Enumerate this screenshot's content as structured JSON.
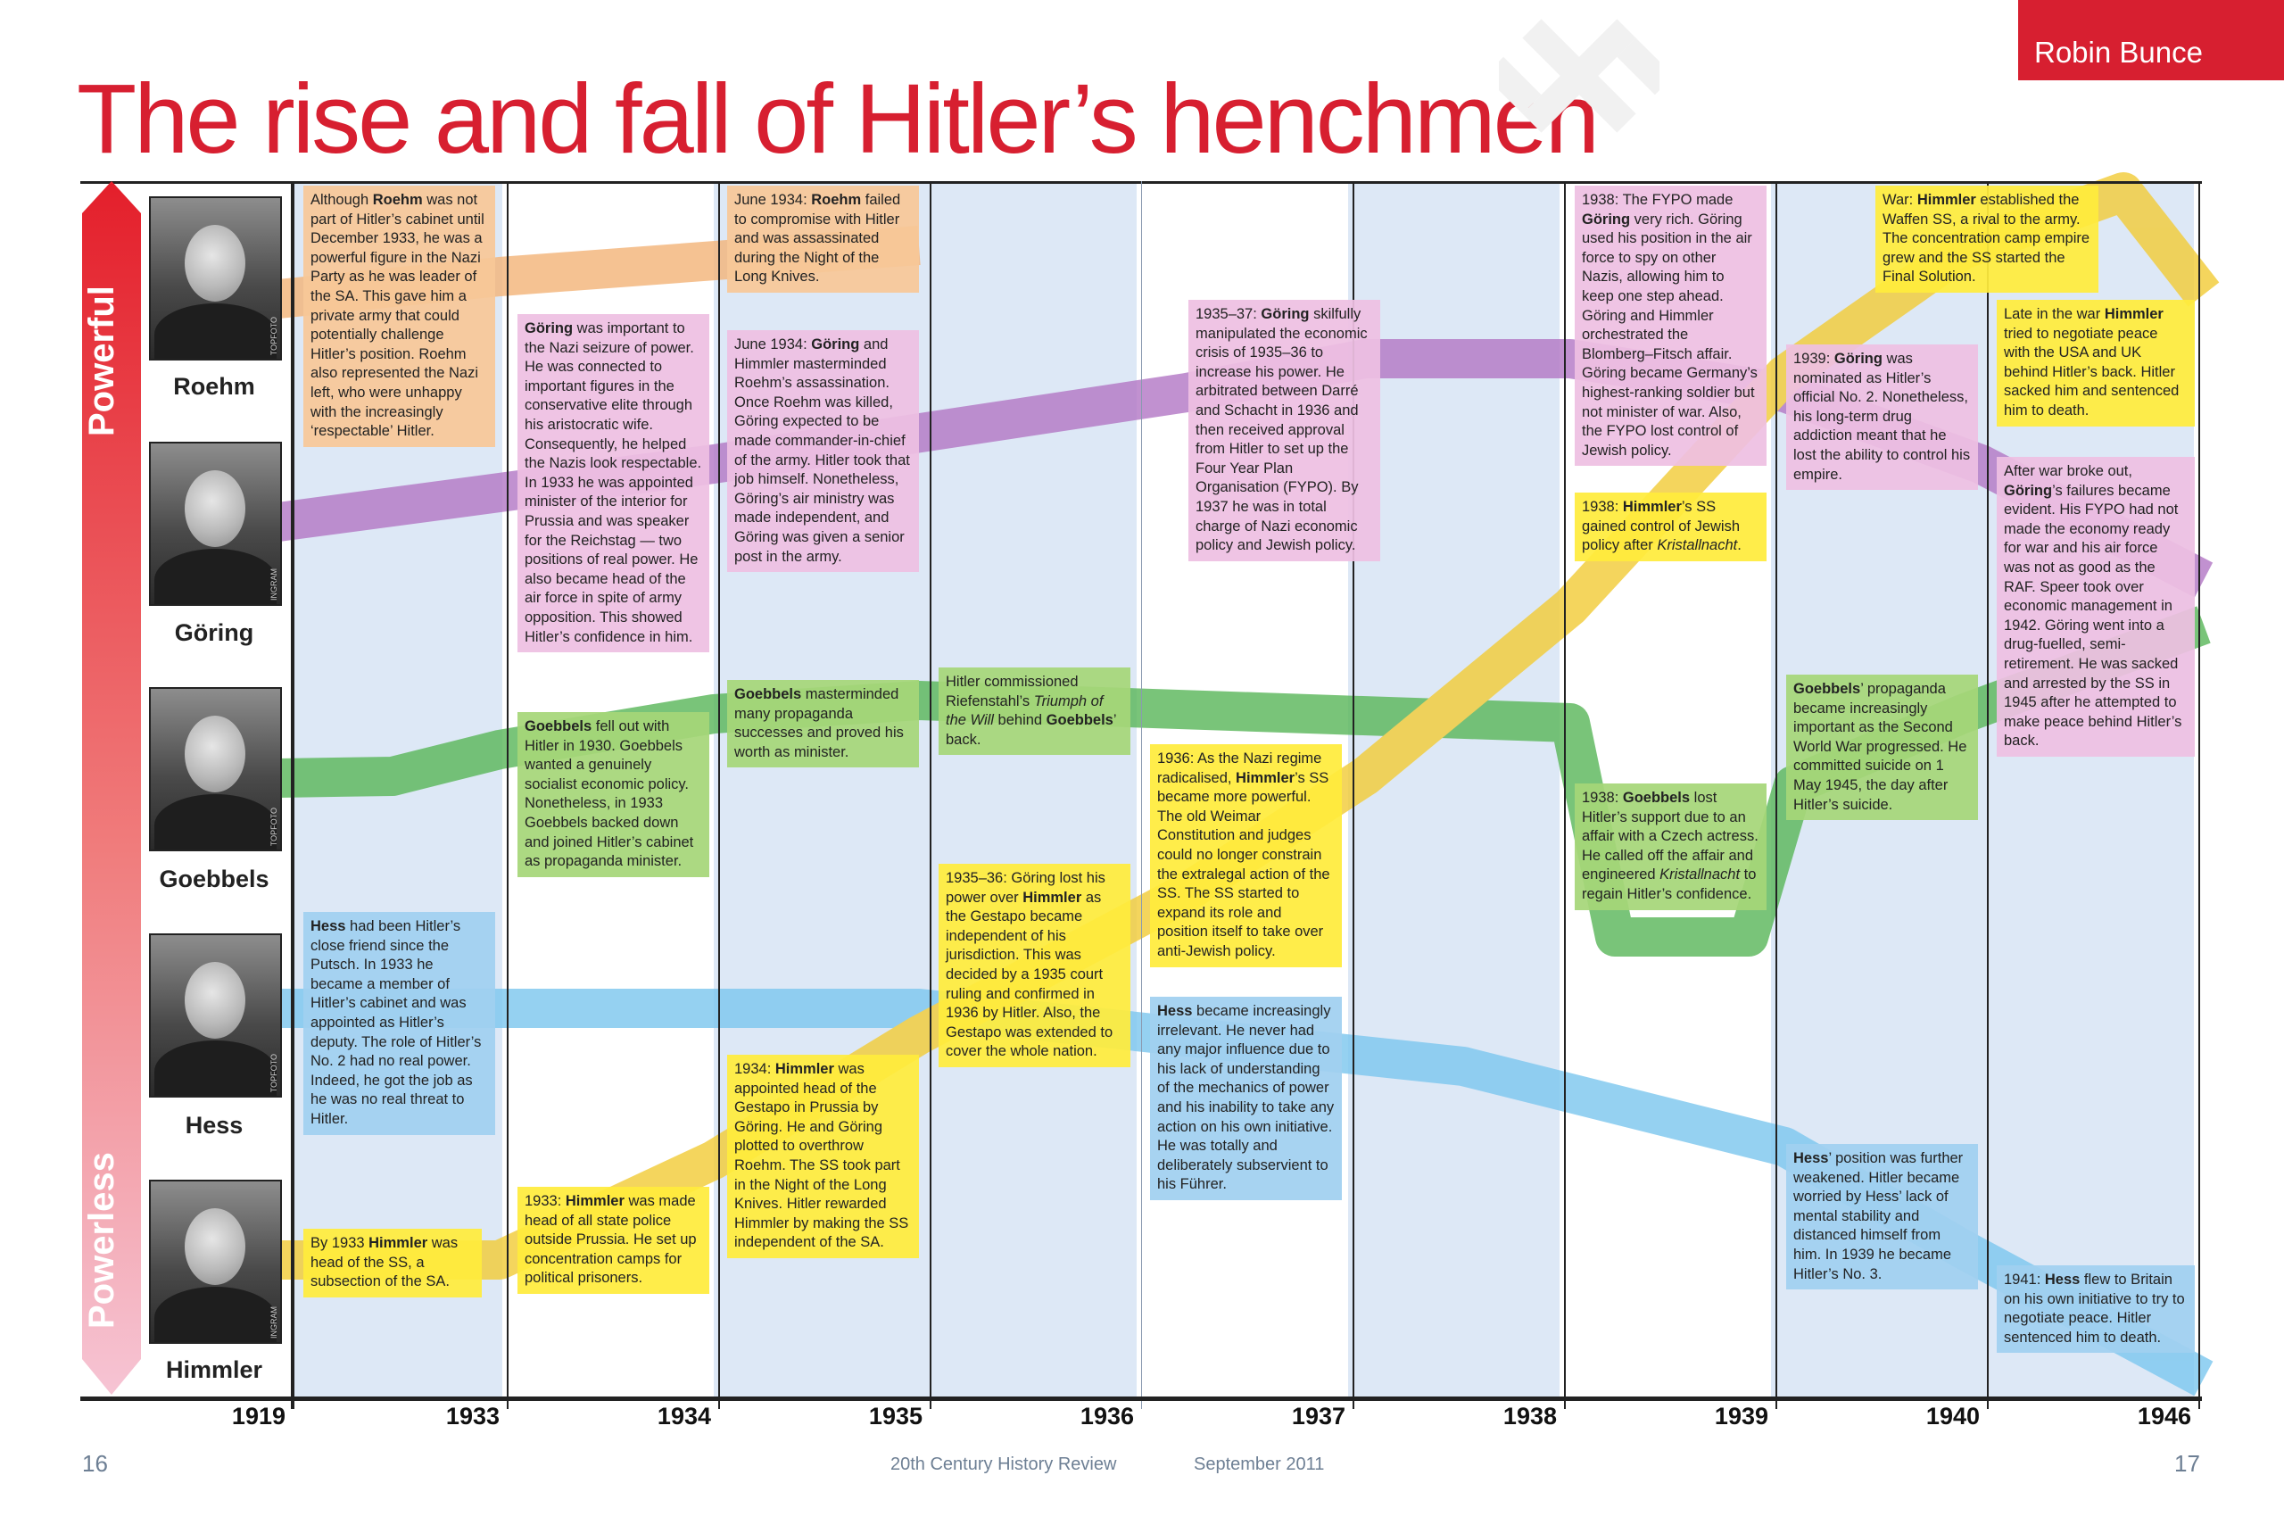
{
  "header": {
    "author": "Robin Bunce",
    "title": "The rise and fall of Hitler’s henchmen"
  },
  "axis": {
    "powerful_label": "Powerful",
    "powerless_label": "Powerless",
    "years": [
      "1919",
      "1933",
      "1934",
      "1935",
      "1936",
      "1937",
      "1938",
      "1939",
      "1940",
      "1946"
    ]
  },
  "people": [
    {
      "name": "Roehm",
      "credit": "TOPFOTO",
      "color": "#f4b57b"
    },
    {
      "name": "Göring",
      "credit": "INGRAM",
      "color": "#b47ac6"
    },
    {
      "name": "Goebbels",
      "credit": "TOPFOTO",
      "color": "#5cb85c"
    },
    {
      "name": "Hess",
      "credit": "TOPFOTO",
      "color": "#7ec8ef"
    },
    {
      "name": "Himmler",
      "credit": "INGRAM",
      "color": "#f2cc3a"
    }
  ],
  "notes": {
    "roehm_1919": "Although <b>Roehm</b> was not part of Hitler’s cabinet until December 1933, he was a powerful figure in the Nazi Party as he was leader of the SA. This gave him a private army that could potentially challenge Hitler’s position. Roehm also represented the Nazi left, who were unhappy with the increasingly ‘respectable’ Hitler.",
    "hess_1919": "<b>Hess</b> had been Hitler’s close friend since the Putsch. In 1933 he became a member of Hitler’s cabinet and was appointed as Hitler’s deputy. The role of Hitler’s No. 2 had no real power. Indeed, he got the job as he was no real threat to Hitler.",
    "himmler_1919": "By 1933 <b>Himmler</b> was head of the SS, a subsection of the SA.",
    "goring_1933": "<b>Göring</b> was important to the Nazi seizure of power. He was connected to important figures in the conservative elite through his aristocratic wife. Consequently, he helped the Nazis look respectable. In 1933 he was appointed minister of the interior for Prussia and was speaker for the Reichstag — two positions of real power. He also became head of the air force in spite of army opposition. This showed Hitler’s confidence in him.",
    "goebbels_1933": "<b>Goebbels</b> fell out with Hitler in 1930. Goebbels wanted a genuinely socialist economic policy. Nonetheless, in 1933 Goebbels backed down and joined Hitler’s cabinet as propaganda minister.",
    "himmler_1933": "1933: <b>Himmler</b> was made head of all state police outside Prussia. He set up concentration camps for political prisoners.",
    "roehm_1934": "June 1934: <b>Roehm</b> failed to compromise with Hitler and was assassinated during the Night of the Long Knives.",
    "goring_1934": "June 1934: <b>Göring</b> and Himmler masterminded Roehm’s assassination. Once Roehm was killed, Göring expected to be made commander-in-chief of the army. Hitler took that job himself. Nonetheless, Göring’s air ministry was made independent, and Göring was given a senior post in the army.",
    "goebbels_1934": "<b>Goebbels</b> masterminded many propaganda successes and proved his worth as minister.",
    "himmler_1934": "1934: <b>Himmler</b> was appointed head of the Gestapo in Prussia by Göring. He and Göring plotted to overthrow Roehm. The SS took part in the Night of the Long Knives. Hitler rewarded Himmler by making the SS independent of the SA.",
    "goebbels_1935": "Hitler commissioned Riefenstahl’s <i>Triumph of the Will</i> behind <b>Goebbels</b>’ back.",
    "goring_1935": "1935–36: Göring lost his power over <b>Himmler</b> as the Gestapo became independent of his jurisdiction. This was decided by a 1935 court ruling and confirmed in 1936 by Hitler. Also, the Gestapo was extended to cover the whole nation.",
    "goring_1936": "1935–37: <b>Göring</b> skilfully manipulated the economic crisis of 1935–36 to increase his power. He arbitrated between Darré and Schacht in 1936 and then received approval from Hitler to set up the Four Year Plan Organisation (FYPO). By 1937 he was in total charge of Nazi economic policy and Jewish policy.",
    "himmler_1936": "1936: As the Nazi regime radicalised, <b>Himmler</b>’s SS became more powerful. The old Weimar Constitution and judges could no longer constrain the extralegal action of the SS. The SS started to expand its role and position itself to take over anti-Jewish policy.",
    "hess_1936": "<b>Hess</b> became increasingly irrelevant. He never had any major influence due to his lack of understanding of the mechanics of power and his inability to take any action on his own initiative. He was totally and deliberately subservient to his Führer.",
    "goring_1938": "1938: The FYPO made <b>Göring</b> very rich. Göring used his position in the air force to spy on other Nazis, allowing him to keep one step ahead. Göring and Himmler orchestrated the Blomberg–Fitsch affair. Göring became Germany’s highest-ranking soldier but not minister of war. Also, the FYPO lost control of Jewish policy.",
    "himmler_1938": "1938: <b>Himmler</b>’s SS gained control of Jewish policy after <i>Kristallnacht</i>.",
    "goebbels_1938": "1938: <b>Goebbels</b> lost Hitler’s support due to an affair with a Czech actress. He called off the affair and engineered <i>Kristallnacht</i> to regain Hitler’s confidence.",
    "goring_1939": "1939: <b>Göring</b> was nominated as Hitler’s official No. 2. Nonetheless, his long-term drug addiction meant that he lost the ability to control his empire.",
    "goebbels_1939": "<b>Goebbels</b>’ propaganda became increasingly important as the Second World War progressed. He committed suicide on 1 May 1945, the day after Hitler’s suicide.",
    "hess_1939": "<b>Hess</b>’ position was further weakened. Hitler became worried by Hess’ lack of mental stability and distanced himself from him. In 1939 he became Hitler’s No. 3.",
    "himmler_1940": "War: <b>Himmler</b> established the Waffen SS, a rival to the army. The concentration camp empire grew and the SS started the Final Solution.",
    "himmler_1946": "Late in the war <b>Himmler</b> tried to negotiate peace with the USA and UK behind Hitler’s back. Hitler sacked him and sentenced him to death.",
    "goring_1946": "After war broke out, <b>Göring</b>’s failures became evident. His FYPO had not made the economy ready for war and his air force was not as good as the RAF. Speer took over economic management in 1942. Göring went into a drug-fuelled, semi-retirement. He was sacked and arrested by the SS in 1945 after he attempted to make peace behind Hitler’s back.",
    "hess_1946": "1941: <b>Hess</b> flew to Britain on his own initiative to try to negotiate peace. Hitler sentenced him to death."
  },
  "footer": {
    "page_left": "16",
    "publication": "20th Century History Review",
    "issue": "September 2011",
    "page_right": "17"
  }
}
